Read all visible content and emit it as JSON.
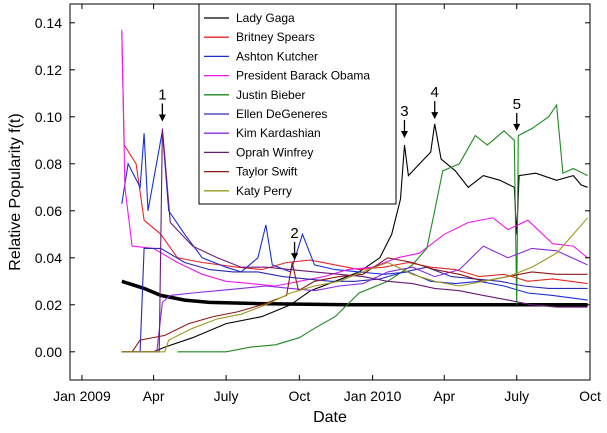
{
  "chart_data": {
    "type": "line",
    "xlabel": "Date",
    "ylabel": "Relative Popularity f(t)",
    "xlim": [
      "2008-12-17",
      "2010-10-01"
    ],
    "ylim": [
      -0.012,
      0.148
    ],
    "x_ticks": [
      {
        "date": "2009-01-01",
        "label": "Jan 2009"
      },
      {
        "date": "2009-04-01",
        "label": "Apr"
      },
      {
        "date": "2009-07-01",
        "label": "July"
      },
      {
        "date": "2009-10-01",
        "label": "Oct"
      },
      {
        "date": "2010-01-01",
        "label": "Jan 2010"
      },
      {
        "date": "2010-04-01",
        "label": "Apr"
      },
      {
        "date": "2010-07-01",
        "label": "July"
      },
      {
        "date": "2010-10-01",
        "label": "Oct"
      }
    ],
    "y_ticks": [
      0.0,
      0.02,
      0.04,
      0.06,
      0.08,
      0.1,
      0.12,
      0.14
    ],
    "y_tick_labels": [
      "0.00",
      "0.02",
      "0.04",
      "0.06",
      "0.08",
      "0.10",
      "0.12",
      "0.14"
    ],
    "legend_position": "top-center",
    "series": [
      {
        "name": "Lady Gaga",
        "color": "#000000",
        "points": [
          [
            "2009-02-20",
            0.0
          ],
          [
            "2009-04-01",
            0.0
          ],
          [
            "2009-04-15",
            0.002
          ],
          [
            "2009-05-20",
            0.006
          ],
          [
            "2009-07-01",
            0.012
          ],
          [
            "2009-08-15",
            0.015
          ],
          [
            "2009-09-20",
            0.02
          ],
          [
            "2009-10-15",
            0.026
          ],
          [
            "2009-11-15",
            0.03
          ],
          [
            "2009-12-15",
            0.034
          ],
          [
            "2010-01-10",
            0.04
          ],
          [
            "2010-01-25",
            0.05
          ],
          [
            "2010-02-05",
            0.065
          ],
          [
            "2010-02-10",
            0.088
          ],
          [
            "2010-02-15",
            0.075
          ],
          [
            "2010-03-01",
            0.08
          ],
          [
            "2010-03-15",
            0.085
          ],
          [
            "2010-03-20",
            0.097
          ],
          [
            "2010-03-28",
            0.082
          ],
          [
            "2010-04-15",
            0.077
          ],
          [
            "2010-05-01",
            0.07
          ],
          [
            "2010-05-20",
            0.075
          ],
          [
            "2010-06-10",
            0.073
          ],
          [
            "2010-06-28",
            0.07
          ],
          [
            "2010-07-01",
            0.05
          ],
          [
            "2010-07-04",
            0.075
          ],
          [
            "2010-07-25",
            0.076
          ],
          [
            "2010-08-20",
            0.073
          ],
          [
            "2010-09-10",
            0.075
          ],
          [
            "2010-09-20",
            0.071
          ],
          [
            "2010-09-28",
            0.07
          ]
        ]
      },
      {
        "name": "Britney Spears",
        "color": "#e8262a",
        "points": [
          [
            "2009-02-20",
            0.136
          ],
          [
            "2009-02-23",
            0.088
          ],
          [
            "2009-03-10",
            0.08
          ],
          [
            "2009-03-20",
            0.056
          ],
          [
            "2009-04-10",
            0.05
          ],
          [
            "2009-05-01",
            0.04
          ],
          [
            "2009-06-01",
            0.038
          ],
          [
            "2009-07-15",
            0.036
          ],
          [
            "2009-08-15",
            0.035
          ],
          [
            "2009-09-15",
            0.038
          ],
          [
            "2009-10-15",
            0.039
          ],
          [
            "2009-11-15",
            0.037
          ],
          [
            "2009-12-15",
            0.035
          ],
          [
            "2010-01-15",
            0.036
          ],
          [
            "2010-02-15",
            0.038
          ],
          [
            "2010-03-15",
            0.036
          ],
          [
            "2010-04-15",
            0.035
          ],
          [
            "2010-05-15",
            0.032
          ],
          [
            "2010-06-15",
            0.033
          ],
          [
            "2010-07-15",
            0.03
          ],
          [
            "2010-08-15",
            0.031
          ],
          [
            "2010-09-28",
            0.029
          ]
        ]
      },
      {
        "name": "Ashton Kutcher",
        "color": "#1a30d8",
        "points": [
          [
            "2009-02-20",
            0.063
          ],
          [
            "2009-02-28",
            0.08
          ],
          [
            "2009-03-15",
            0.07
          ],
          [
            "2009-03-20",
            0.093
          ],
          [
            "2009-03-25",
            0.06
          ],
          [
            "2009-04-12",
            0.094
          ],
          [
            "2009-04-20",
            0.06
          ],
          [
            "2009-05-10",
            0.05
          ],
          [
            "2009-06-01",
            0.04
          ],
          [
            "2009-07-01",
            0.036
          ],
          [
            "2009-07-20",
            0.034
          ],
          [
            "2009-08-10",
            0.04
          ],
          [
            "2009-08-20",
            0.054
          ],
          [
            "2009-08-28",
            0.037
          ],
          [
            "2009-09-20",
            0.034
          ],
          [
            "2009-10-05",
            0.05
          ],
          [
            "2009-10-20",
            0.037
          ],
          [
            "2009-11-15",
            0.035
          ],
          [
            "2009-12-15",
            0.034
          ],
          [
            "2010-01-15",
            0.033
          ],
          [
            "2010-02-15",
            0.034
          ],
          [
            "2010-03-15",
            0.03
          ],
          [
            "2010-04-15",
            0.029
          ],
          [
            "2010-05-15",
            0.03
          ],
          [
            "2010-06-15",
            0.028
          ],
          [
            "2010-07-15",
            0.025
          ],
          [
            "2010-08-15",
            0.024
          ],
          [
            "2010-09-28",
            0.022
          ]
        ]
      },
      {
        "name": "President Barack Obama",
        "color": "#ee1aee",
        "points": [
          [
            "2009-02-20",
            0.137
          ],
          [
            "2009-02-24",
            0.07
          ],
          [
            "2009-03-05",
            0.045
          ],
          [
            "2009-04-01",
            0.044
          ],
          [
            "2009-05-01",
            0.038
          ],
          [
            "2009-06-01",
            0.033
          ],
          [
            "2009-07-01",
            0.03
          ],
          [
            "2009-08-01",
            0.029
          ],
          [
            "2009-09-01",
            0.028
          ],
          [
            "2009-10-01",
            0.03
          ],
          [
            "2009-11-01",
            0.032
          ],
          [
            "2009-12-01",
            0.035
          ],
          [
            "2010-01-01",
            0.036
          ],
          [
            "2010-02-01",
            0.04
          ],
          [
            "2010-03-01",
            0.042
          ],
          [
            "2010-04-01",
            0.05
          ],
          [
            "2010-05-01",
            0.055
          ],
          [
            "2010-06-01",
            0.057
          ],
          [
            "2010-06-20",
            0.052
          ],
          [
            "2010-07-15",
            0.056
          ],
          [
            "2010-08-15",
            0.046
          ],
          [
            "2010-09-10",
            0.045
          ],
          [
            "2010-09-28",
            0.04
          ]
        ]
      },
      {
        "name": "Justin Bieber",
        "color": "#1f8a1f",
        "points": [
          [
            "2009-05-01",
            0.0
          ],
          [
            "2009-07-01",
            0.0
          ],
          [
            "2009-08-01",
            0.002
          ],
          [
            "2009-09-01",
            0.003
          ],
          [
            "2009-10-01",
            0.006
          ],
          [
            "2009-10-20",
            0.01
          ],
          [
            "2009-11-15",
            0.015
          ],
          [
            "2009-12-15",
            0.025
          ],
          [
            "2010-01-20",
            0.03
          ],
          [
            "2010-02-20",
            0.037
          ],
          [
            "2010-03-10",
            0.044
          ],
          [
            "2010-03-20",
            0.06
          ],
          [
            "2010-03-30",
            0.077
          ],
          [
            "2010-04-20",
            0.08
          ],
          [
            "2010-05-10",
            0.092
          ],
          [
            "2010-05-25",
            0.088
          ],
          [
            "2010-06-15",
            0.094
          ],
          [
            "2010-06-28",
            0.09
          ],
          [
            "2010-07-01",
            0.02
          ],
          [
            "2010-07-03",
            0.092
          ],
          [
            "2010-07-20",
            0.095
          ],
          [
            "2010-08-10",
            0.1
          ],
          [
            "2010-08-20",
            0.105
          ],
          [
            "2010-08-28",
            0.076
          ],
          [
            "2010-09-10",
            0.078
          ],
          [
            "2010-09-28",
            0.075
          ]
        ]
      },
      {
        "name": "Ellen DeGeneres",
        "color": "#2a2ab0",
        "points": [
          [
            "2009-02-20",
            0.0
          ],
          [
            "2009-03-15",
            0.0
          ],
          [
            "2009-03-20",
            0.044
          ],
          [
            "2009-04-10",
            0.044
          ],
          [
            "2009-05-10",
            0.038
          ],
          [
            "2009-06-10",
            0.035
          ],
          [
            "2009-07-10",
            0.034
          ],
          [
            "2009-08-10",
            0.034
          ],
          [
            "2009-09-10",
            0.032
          ],
          [
            "2009-10-10",
            0.031
          ],
          [
            "2009-11-10",
            0.03
          ],
          [
            "2009-12-10",
            0.03
          ],
          [
            "2010-01-10",
            0.031
          ],
          [
            "2010-02-10",
            0.034
          ],
          [
            "2010-03-10",
            0.036
          ],
          [
            "2010-04-10",
            0.032
          ],
          [
            "2010-05-10",
            0.031
          ],
          [
            "2010-06-10",
            0.03
          ],
          [
            "2010-07-10",
            0.028
          ],
          [
            "2010-08-10",
            0.027
          ],
          [
            "2010-09-28",
            0.027
          ]
        ]
      },
      {
        "name": "Kim Kardashian",
        "color": "#8a2be2",
        "points": [
          [
            "2009-02-20",
            0.0
          ],
          [
            "2009-04-05",
            0.0
          ],
          [
            "2009-04-12",
            0.021
          ],
          [
            "2009-04-22",
            0.024
          ],
          [
            "2009-05-20",
            0.025
          ],
          [
            "2009-06-20",
            0.026
          ],
          [
            "2009-07-20",
            0.027
          ],
          [
            "2009-08-20",
            0.028
          ],
          [
            "2009-09-20",
            0.027
          ],
          [
            "2009-10-20",
            0.026
          ],
          [
            "2009-11-20",
            0.028
          ],
          [
            "2009-12-20",
            0.029
          ],
          [
            "2010-01-20",
            0.034
          ],
          [
            "2010-02-20",
            0.036
          ],
          [
            "2010-03-20",
            0.032
          ],
          [
            "2010-04-20",
            0.035
          ],
          [
            "2010-05-20",
            0.045
          ],
          [
            "2010-06-20",
            0.04
          ],
          [
            "2010-07-20",
            0.044
          ],
          [
            "2010-08-20",
            0.043
          ],
          [
            "2010-09-28",
            0.037
          ]
        ]
      },
      {
        "name": "Oprah Winfrey",
        "color": "#6a1a7a",
        "points": [
          [
            "2009-02-20",
            0.0
          ],
          [
            "2009-04-08",
            0.0
          ],
          [
            "2009-04-12",
            0.095
          ],
          [
            "2009-04-22",
            0.055
          ],
          [
            "2009-05-20",
            0.045
          ],
          [
            "2009-06-20",
            0.04
          ],
          [
            "2009-07-20",
            0.036
          ],
          [
            "2009-08-20",
            0.036
          ],
          [
            "2009-09-20",
            0.035
          ],
          [
            "2009-10-20",
            0.034
          ],
          [
            "2009-11-20",
            0.033
          ],
          [
            "2009-12-20",
            0.032
          ],
          [
            "2010-01-20",
            0.03
          ],
          [
            "2010-02-20",
            0.029
          ],
          [
            "2010-03-20",
            0.027
          ],
          [
            "2010-04-20",
            0.026
          ],
          [
            "2010-05-20",
            0.024
          ],
          [
            "2010-06-20",
            0.022
          ],
          [
            "2010-07-20",
            0.02
          ],
          [
            "2010-08-20",
            0.019
          ],
          [
            "2010-09-28",
            0.019
          ]
        ]
      },
      {
        "name": "Taylor Swift",
        "color": "#8b1a1a",
        "points": [
          [
            "2009-02-20",
            0.0
          ],
          [
            "2009-03-05",
            0.0
          ],
          [
            "2009-03-15",
            0.005
          ],
          [
            "2009-04-15",
            0.007
          ],
          [
            "2009-05-15",
            0.012
          ],
          [
            "2009-06-15",
            0.015
          ],
          [
            "2009-07-15",
            0.017
          ],
          [
            "2009-08-15",
            0.02
          ],
          [
            "2009-09-15",
            0.024
          ],
          [
            "2009-09-22",
            0.038
          ],
          [
            "2009-09-30",
            0.026
          ],
          [
            "2009-10-20",
            0.03
          ],
          [
            "2009-11-20",
            0.032
          ],
          [
            "2009-12-20",
            0.033
          ],
          [
            "2010-01-20",
            0.04
          ],
          [
            "2010-02-20",
            0.038
          ],
          [
            "2010-03-20",
            0.035
          ],
          [
            "2010-04-20",
            0.033
          ],
          [
            "2010-05-20",
            0.03
          ],
          [
            "2010-06-20",
            0.032
          ],
          [
            "2010-07-20",
            0.034
          ],
          [
            "2010-08-20",
            0.033
          ],
          [
            "2010-09-28",
            0.033
          ]
        ]
      },
      {
        "name": "Katy Perry",
        "color": "#9a9a20",
        "points": [
          [
            "2009-02-20",
            0.0
          ],
          [
            "2009-04-15",
            0.0
          ],
          [
            "2009-04-20",
            0.005
          ],
          [
            "2009-05-20",
            0.01
          ],
          [
            "2009-06-20",
            0.014
          ],
          [
            "2009-07-20",
            0.016
          ],
          [
            "2009-08-20",
            0.02
          ],
          [
            "2009-09-20",
            0.025
          ],
          [
            "2009-10-20",
            0.028
          ],
          [
            "2009-11-20",
            0.03
          ],
          [
            "2009-12-20",
            0.034
          ],
          [
            "2010-01-20",
            0.038
          ],
          [
            "2010-02-20",
            0.033
          ],
          [
            "2010-03-20",
            0.03
          ],
          [
            "2010-04-20",
            0.028
          ],
          [
            "2010-05-20",
            0.03
          ],
          [
            "2010-06-20",
            0.032
          ],
          [
            "2010-07-20",
            0.036
          ],
          [
            "2010-08-20",
            0.042
          ],
          [
            "2010-09-10",
            0.05
          ],
          [
            "2010-09-28",
            0.057
          ]
        ]
      }
    ],
    "extra_series": [
      {
        "color": "#000000",
        "points": [
          [
            "2009-02-20",
            0.03
          ],
          [
            "2009-03-01",
            0.029
          ],
          [
            "2009-03-20",
            0.027
          ],
          [
            "2009-04-10",
            0.024
          ],
          [
            "2009-05-10",
            0.022
          ],
          [
            "2009-06-10",
            0.021
          ],
          [
            "2009-08-10",
            0.0205
          ],
          [
            "2009-12-01",
            0.02
          ],
          [
            "2010-09-28",
            0.02
          ]
        ]
      }
    ],
    "annotations": [
      {
        "label": "1",
        "date": "2009-04-12",
        "value": 0.098
      },
      {
        "label": "2",
        "date": "2009-09-25",
        "value": 0.039
      },
      {
        "label": "3",
        "date": "2010-02-10",
        "value": 0.091
      },
      {
        "label": "4",
        "date": "2010-03-20",
        "value": 0.099
      },
      {
        "label": "5",
        "date": "2010-07-01",
        "value": 0.094
      }
    ]
  }
}
